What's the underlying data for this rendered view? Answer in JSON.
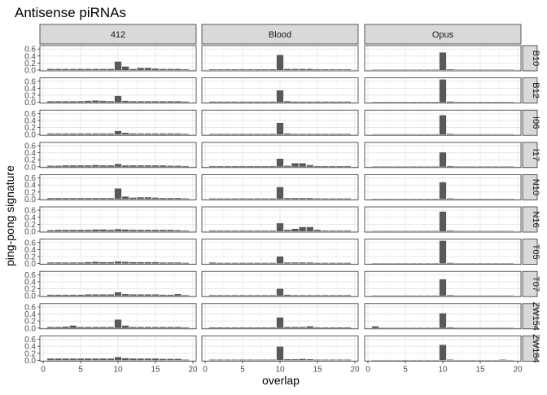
{
  "chart_data": {
    "type": "bar",
    "title": "Antisense piRNAs",
    "xlabel": "overlap",
    "ylabel": "ping-pong signature",
    "facet_cols": [
      "412",
      "Blood",
      "Opus"
    ],
    "facet_rows": [
      "B10",
      "B12",
      "I06",
      "I17",
      "N10",
      "N16",
      "T05",
      "T07",
      "ZW154",
      "ZW184"
    ],
    "x": [
      1,
      2,
      3,
      4,
      5,
      6,
      7,
      8,
      9,
      10,
      11,
      12,
      13,
      14,
      15,
      16,
      17,
      18,
      19
    ],
    "xlim": [
      0,
      20
    ],
    "ylim": [
      0,
      0.65
    ],
    "x_ticks": [
      0,
      5,
      10,
      15,
      20
    ],
    "y_ticks": [
      0,
      0.2,
      0.4,
      0.6
    ],
    "y_tick_labels": [
      "0.0",
      "0.2",
      "0.4",
      "0.6"
    ],
    "bar_color": "#595959",
    "strip_color": "#d9d9d9",
    "grid": true,
    "panels": {
      "B10": {
        "412": [
          0.03,
          0.03,
          0.03,
          0.03,
          0.03,
          0.03,
          0.03,
          0.03,
          0.03,
          0.24,
          0.1,
          0.03,
          0.06,
          0.06,
          0.04,
          0.03,
          0.03,
          0.03,
          0.02
        ],
        "Blood": [
          0.02,
          0.02,
          0.02,
          0.02,
          0.02,
          0.02,
          0.02,
          0.02,
          0.02,
          0.43,
          0.03,
          0.03,
          0.03,
          0.03,
          0.02,
          0.02,
          0.02,
          0.02,
          0.02
        ],
        "Opus": [
          0.01,
          0.01,
          0.01,
          0.01,
          0.01,
          0.01,
          0.01,
          0.01,
          0.01,
          0.5,
          0.02,
          0.01,
          0.01,
          0.01,
          0.01,
          0.01,
          0.01,
          0.01,
          0.01
        ]
      },
      "B12": {
        "412": [
          0.03,
          0.03,
          0.03,
          0.03,
          0.03,
          0.04,
          0.05,
          0.04,
          0.03,
          0.18,
          0.04,
          0.03,
          0.03,
          0.03,
          0.03,
          0.03,
          0.03,
          0.03,
          0.02
        ],
        "Blood": [
          0.02,
          0.02,
          0.02,
          0.02,
          0.02,
          0.02,
          0.02,
          0.02,
          0.02,
          0.34,
          0.03,
          0.02,
          0.02,
          0.02,
          0.02,
          0.02,
          0.02,
          0.02,
          0.02
        ],
        "Opus": [
          0.01,
          0.01,
          0.01,
          0.01,
          0.01,
          0.01,
          0.01,
          0.01,
          0.01,
          0.65,
          0.02,
          0.01,
          0.01,
          0.01,
          0.01,
          0.01,
          0.01,
          0.01,
          0.01
        ]
      },
      "I06": {
        "412": [
          0.03,
          0.03,
          0.03,
          0.03,
          0.03,
          0.03,
          0.03,
          0.03,
          0.03,
          0.1,
          0.05,
          0.03,
          0.03,
          0.03,
          0.03,
          0.03,
          0.03,
          0.03,
          0.02
        ],
        "Blood": [
          0.02,
          0.02,
          0.02,
          0.02,
          0.02,
          0.02,
          0.02,
          0.02,
          0.02,
          0.33,
          0.03,
          0.02,
          0.02,
          0.02,
          0.02,
          0.02,
          0.02,
          0.02,
          0.02
        ],
        "Opus": [
          0.01,
          0.01,
          0.01,
          0.01,
          0.01,
          0.01,
          0.01,
          0.01,
          0.01,
          0.55,
          0.02,
          0.01,
          0.01,
          0.01,
          0.01,
          0.01,
          0.01,
          0.01,
          0.01
        ]
      },
      "I17": {
        "412": [
          0.03,
          0.03,
          0.04,
          0.04,
          0.04,
          0.04,
          0.05,
          0.04,
          0.04,
          0.08,
          0.04,
          0.04,
          0.04,
          0.04,
          0.04,
          0.04,
          0.03,
          0.03,
          0.02
        ],
        "Blood": [
          0.02,
          0.02,
          0.02,
          0.02,
          0.02,
          0.02,
          0.02,
          0.02,
          0.02,
          0.23,
          0.03,
          0.1,
          0.1,
          0.05,
          0.02,
          0.02,
          0.02,
          0.02,
          0.02
        ],
        "Opus": [
          0.01,
          0.01,
          0.01,
          0.01,
          0.01,
          0.01,
          0.01,
          0.01,
          0.01,
          0.41,
          0.02,
          0.01,
          0.01,
          0.01,
          0.01,
          0.01,
          0.01,
          0.01,
          0.01
        ]
      },
      "N10": {
        "412": [
          0.03,
          0.03,
          0.03,
          0.03,
          0.03,
          0.03,
          0.03,
          0.03,
          0.03,
          0.3,
          0.07,
          0.04,
          0.05,
          0.05,
          0.04,
          0.03,
          0.03,
          0.03,
          0.02
        ],
        "Blood": [
          0.02,
          0.02,
          0.02,
          0.02,
          0.02,
          0.02,
          0.02,
          0.02,
          0.02,
          0.34,
          0.03,
          0.03,
          0.03,
          0.03,
          0.02,
          0.02,
          0.02,
          0.02,
          0.02
        ],
        "Opus": [
          0.01,
          0.01,
          0.01,
          0.01,
          0.01,
          0.01,
          0.01,
          0.01,
          0.01,
          0.48,
          0.02,
          0.01,
          0.01,
          0.01,
          0.01,
          0.01,
          0.01,
          0.01,
          0.01
        ]
      },
      "N16": {
        "412": [
          0.03,
          0.04,
          0.04,
          0.04,
          0.04,
          0.04,
          0.05,
          0.05,
          0.04,
          0.06,
          0.05,
          0.04,
          0.04,
          0.04,
          0.04,
          0.04,
          0.04,
          0.03,
          0.02
        ],
        "Blood": [
          0.02,
          0.02,
          0.02,
          0.02,
          0.02,
          0.02,
          0.02,
          0.02,
          0.02,
          0.23,
          0.04,
          0.07,
          0.12,
          0.12,
          0.04,
          0.02,
          0.02,
          0.02,
          0.02
        ],
        "Opus": [
          0.01,
          0.01,
          0.01,
          0.01,
          0.01,
          0.01,
          0.01,
          0.01,
          0.01,
          0.56,
          0.02,
          0.01,
          0.01,
          0.01,
          0.01,
          0.01,
          0.01,
          0.01,
          0.01
        ]
      },
      "T05": {
        "412": [
          0.03,
          0.03,
          0.03,
          0.03,
          0.03,
          0.04,
          0.05,
          0.04,
          0.04,
          0.06,
          0.05,
          0.04,
          0.04,
          0.04,
          0.04,
          0.03,
          0.03,
          0.03,
          0.02
        ],
        "Blood": [
          0.03,
          0.02,
          0.02,
          0.02,
          0.02,
          0.02,
          0.02,
          0.02,
          0.02,
          0.2,
          0.03,
          0.03,
          0.03,
          0.03,
          0.02,
          0.02,
          0.02,
          0.02,
          0.02
        ],
        "Opus": [
          0.01,
          0.01,
          0.01,
          0.01,
          0.01,
          0.01,
          0.01,
          0.01,
          0.01,
          0.65,
          0.02,
          0.01,
          0.01,
          0.01,
          0.01,
          0.01,
          0.01,
          0.01,
          0.01
        ]
      },
      "T07": {
        "412": [
          0.03,
          0.03,
          0.03,
          0.03,
          0.03,
          0.04,
          0.04,
          0.04,
          0.04,
          0.1,
          0.05,
          0.04,
          0.04,
          0.04,
          0.04,
          0.03,
          0.03,
          0.05,
          0.02
        ],
        "Blood": [
          0.02,
          0.02,
          0.02,
          0.02,
          0.02,
          0.02,
          0.02,
          0.02,
          0.02,
          0.2,
          0.03,
          0.02,
          0.02,
          0.02,
          0.02,
          0.02,
          0.02,
          0.02,
          0.02
        ],
        "Opus": [
          0.01,
          0.01,
          0.01,
          0.01,
          0.01,
          0.01,
          0.01,
          0.01,
          0.01,
          0.47,
          0.02,
          0.01,
          0.01,
          0.01,
          0.01,
          0.01,
          0.01,
          0.01,
          0.01
        ]
      },
      "ZW154": {
        "412": [
          0.03,
          0.03,
          0.04,
          0.07,
          0.03,
          0.03,
          0.03,
          0.03,
          0.03,
          0.24,
          0.07,
          0.03,
          0.03,
          0.03,
          0.03,
          0.03,
          0.03,
          0.03,
          0.02
        ],
        "Blood": [
          0.02,
          0.02,
          0.02,
          0.02,
          0.02,
          0.02,
          0.02,
          0.02,
          0.02,
          0.3,
          0.03,
          0.03,
          0.03,
          0.05,
          0.02,
          0.02,
          0.02,
          0.02,
          0.02
        ],
        "Opus": [
          0.05,
          0.01,
          0.01,
          0.01,
          0.01,
          0.01,
          0.01,
          0.01,
          0.01,
          0.42,
          0.02,
          0.01,
          0.01,
          0.01,
          0.01,
          0.01,
          0.01,
          0.01,
          0.01
        ]
      },
      "ZW184": {
        "412": [
          0.05,
          0.05,
          0.05,
          0.05,
          0.05,
          0.05,
          0.05,
          0.05,
          0.05,
          0.09,
          0.06,
          0.05,
          0.05,
          0.05,
          0.05,
          0.04,
          0.04,
          0.04,
          0.02
        ],
        "Blood": [
          0.02,
          0.02,
          0.02,
          0.02,
          0.02,
          0.02,
          0.02,
          0.02,
          0.02,
          0.39,
          0.03,
          0.03,
          0.04,
          0.03,
          0.02,
          0.02,
          0.02,
          0.02,
          0.02
        ],
        "Opus": [
          0.01,
          0.01,
          0.01,
          0.01,
          0.01,
          0.01,
          0.01,
          0.01,
          0.01,
          0.44,
          0.02,
          0.01,
          0.01,
          0.01,
          0.01,
          0.01,
          0.01,
          0.02,
          0.01
        ]
      }
    }
  }
}
